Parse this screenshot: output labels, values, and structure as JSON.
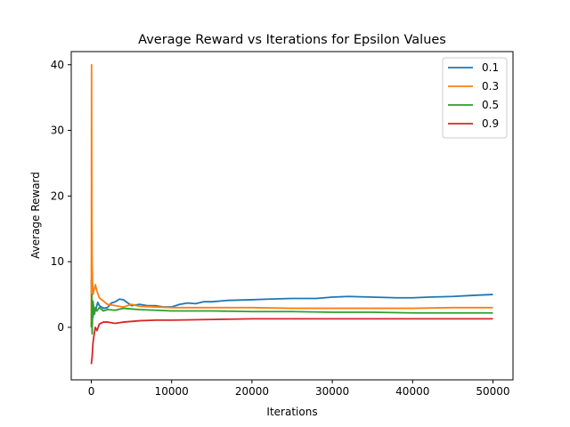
{
  "chart_data": {
    "type": "line",
    "title": "Average Reward vs Iterations for Epsilon Values",
    "xlabel": "Iterations",
    "ylabel": "Average Reward",
    "xlim": [
      -2500,
      52500
    ],
    "ylim": [
      -8,
      42
    ],
    "xticks": [
      0,
      10000,
      20000,
      30000,
      40000,
      50000
    ],
    "xtick_labels": [
      "0",
      "10000",
      "20000",
      "30000",
      "40000",
      "50000"
    ],
    "yticks": [
      0,
      10,
      20,
      30,
      40
    ],
    "ytick_labels": [
      "0",
      "10",
      "20",
      "30",
      "40"
    ],
    "grid": false,
    "legend_position": "top-right",
    "series": [
      {
        "name": "0.1",
        "color": "#1f77b4",
        "x": [
          0,
          50,
          100,
          200,
          300,
          500,
          800,
          1000,
          1500,
          2000,
          2500,
          3000,
          3500,
          4000,
          5000,
          6000,
          7000,
          8000,
          9000,
          10000,
          11000,
          12000,
          13000,
          14000,
          15000,
          17000,
          20000,
          22000,
          25000,
          28000,
          30000,
          32000,
          35000,
          38000,
          40000,
          42000,
          45000,
          48000,
          50000
        ],
        "y": [
          7.3,
          3.5,
          2.5,
          1.5,
          3.0,
          2.5,
          3.8,
          3.3,
          2.9,
          3.0,
          3.7,
          3.9,
          4.3,
          4.2,
          3.3,
          3.5,
          3.3,
          3.3,
          3.1,
          3.1,
          3.5,
          3.7,
          3.6,
          3.9,
          3.9,
          4.1,
          4.2,
          4.3,
          4.4,
          4.4,
          4.6,
          4.7,
          4.6,
          4.5,
          4.5,
          4.6,
          4.7,
          4.9,
          5.0
        ]
      },
      {
        "name": "0.3",
        "color": "#ff7f0e",
        "x": [
          0,
          30,
          60,
          100,
          150,
          200,
          300,
          500,
          700,
          1000,
          1500,
          2000,
          3000,
          4000,
          5000,
          6000,
          8000,
          10000,
          12000,
          15000,
          20000,
          25000,
          30000,
          35000,
          40000,
          45000,
          50000
        ],
        "y": [
          0,
          40,
          20,
          10,
          7,
          5,
          5.5,
          6.5,
          5.5,
          4.5,
          4.0,
          3.5,
          3.3,
          3.1,
          3.5,
          3.2,
          3.1,
          3.0,
          3.0,
          3.0,
          3.0,
          2.9,
          2.9,
          2.9,
          2.9,
          3.0,
          3.0
        ]
      },
      {
        "name": "0.5",
        "color": "#2ca02c",
        "x": [
          0,
          50,
          100,
          150,
          200,
          300,
          400,
          500,
          700,
          1000,
          1500,
          2000,
          3000,
          4000,
          5000,
          6000,
          8000,
          10000,
          15000,
          20000,
          25000,
          30000,
          35000,
          40000,
          45000,
          50000
        ],
        "y": [
          0,
          5,
          -1,
          2,
          4,
          3,
          2,
          3,
          2.5,
          3,
          2.5,
          2.7,
          2.6,
          2.9,
          2.8,
          2.7,
          2.6,
          2.5,
          2.5,
          2.4,
          2.4,
          2.3,
          2.3,
          2.2,
          2.2,
          2.2
        ]
      },
      {
        "name": "0.9",
        "color": "#d62728",
        "x": [
          0,
          50,
          100,
          200,
          300,
          500,
          700,
          1000,
          1500,
          2000,
          3000,
          4000,
          5000,
          6000,
          8000,
          10000,
          15000,
          20000,
          25000,
          30000,
          35000,
          40000,
          45000,
          50000
        ],
        "y": [
          -5.6,
          -5.0,
          -4.5,
          -2.5,
          -1.5,
          0,
          -0.5,
          0.5,
          0.8,
          0.8,
          0.6,
          0.8,
          0.9,
          1.0,
          1.1,
          1.1,
          1.2,
          1.3,
          1.3,
          1.3,
          1.3,
          1.3,
          1.3,
          1.3
        ]
      }
    ]
  }
}
